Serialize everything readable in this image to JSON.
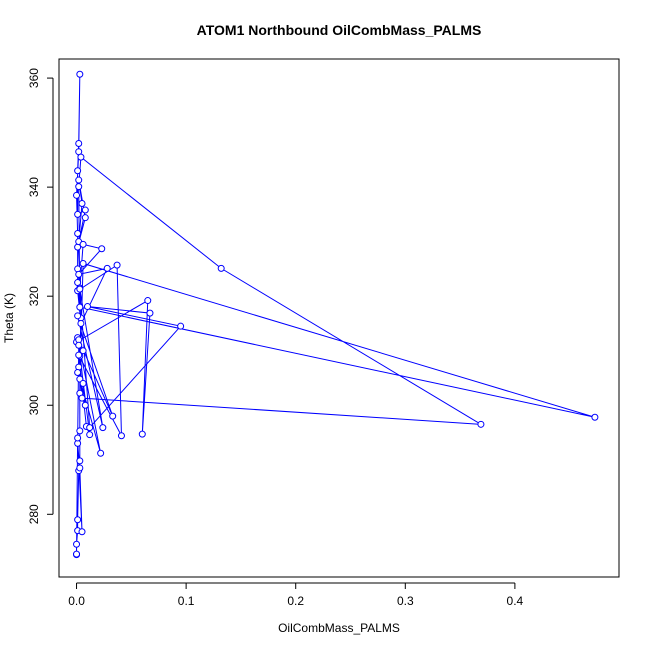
{
  "chart_data": {
    "type": "line",
    "title": "ATOM1 Northbound OilCombMass_PALMS",
    "xlabel": "OilCombMass_PALMS",
    "ylabel": "Theta (K)",
    "xlim": [
      -0.016,
      0.495
    ],
    "ylim": [
      268.5,
      363.5
    ],
    "x_ticks": [
      0.0,
      0.1,
      0.2,
      0.3,
      0.4
    ],
    "x_tick_labels": [
      "0.0",
      "0.1",
      "0.2",
      "0.3",
      "0.4"
    ],
    "y_ticks": [
      280,
      300,
      320,
      340,
      360
    ],
    "y_tick_labels": [
      "280",
      "300",
      "320",
      "340",
      "360"
    ],
    "grid": false,
    "legend": "none",
    "marker": "open-circle",
    "series_color": "#0000ff",
    "series": [
      {
        "x": [
          0.0,
          0.0,
          0.001,
          0.001,
          0.002,
          0.003,
          0.003,
          0.003,
          0.003,
          0.004,
          0.001,
          0.001,
          0.0,
          0.002,
          0.003,
          0.002,
          0.001,
          0.001,
          0.008,
          0.001,
          0.008,
          0.002,
          0.005,
          0.002,
          0.001,
          0.003,
          0.006,
          0.023,
          0.002,
          0.028,
          0.004,
          0.001,
          0.037,
          0.041,
          0.002,
          0.009,
          0.012,
          0.001,
          0.022,
          0.003,
          0.006,
          0.473,
          0.003,
          0.002,
          0.004,
          0.132,
          0.369,
          0.005,
          0.002,
          0.006,
          0.0,
          0.065,
          0.06,
          0.067,
          0.01,
          0.095,
          0.012,
          0.003,
          0.024,
          0.001,
          0.033,
          0.002,
          0.008,
          0.001,
          0.006,
          0.002,
          0.001,
          0.003,
          0.005,
          0.001,
          0.0
        ],
        "y": [
          272.6,
          274.5,
          277.0,
          279.0,
          288.0,
          289.8,
          295.3,
          302.2,
          309.0,
          316.0,
          322.5,
          331.5,
          338.5,
          346.5,
          360.7,
          348.0,
          343.0,
          335.0,
          335.8,
          329.0,
          334.4,
          341.3,
          337.0,
          330.0,
          325.0,
          321.5,
          329.5,
          328.7,
          324.0,
          325.1,
          315.0,
          321.0,
          325.7,
          294.4,
          309.2,
          296.1,
          294.6,
          312.4,
          291.2,
          304.8,
          326.0,
          297.8,
          318.0,
          340.1,
          345.5,
          325.1,
          296.5,
          301.3,
          307.0,
          310.0,
          311.6,
          319.2,
          294.7,
          316.9,
          318.1,
          314.5,
          295.9,
          321.3,
          295.9,
          316.4,
          298.0,
          312.0,
          300.0,
          306.0,
          304.0,
          311.0,
          293.0,
          288.5,
          276.8,
          294.0,
          272.7
        ]
      }
    ]
  }
}
